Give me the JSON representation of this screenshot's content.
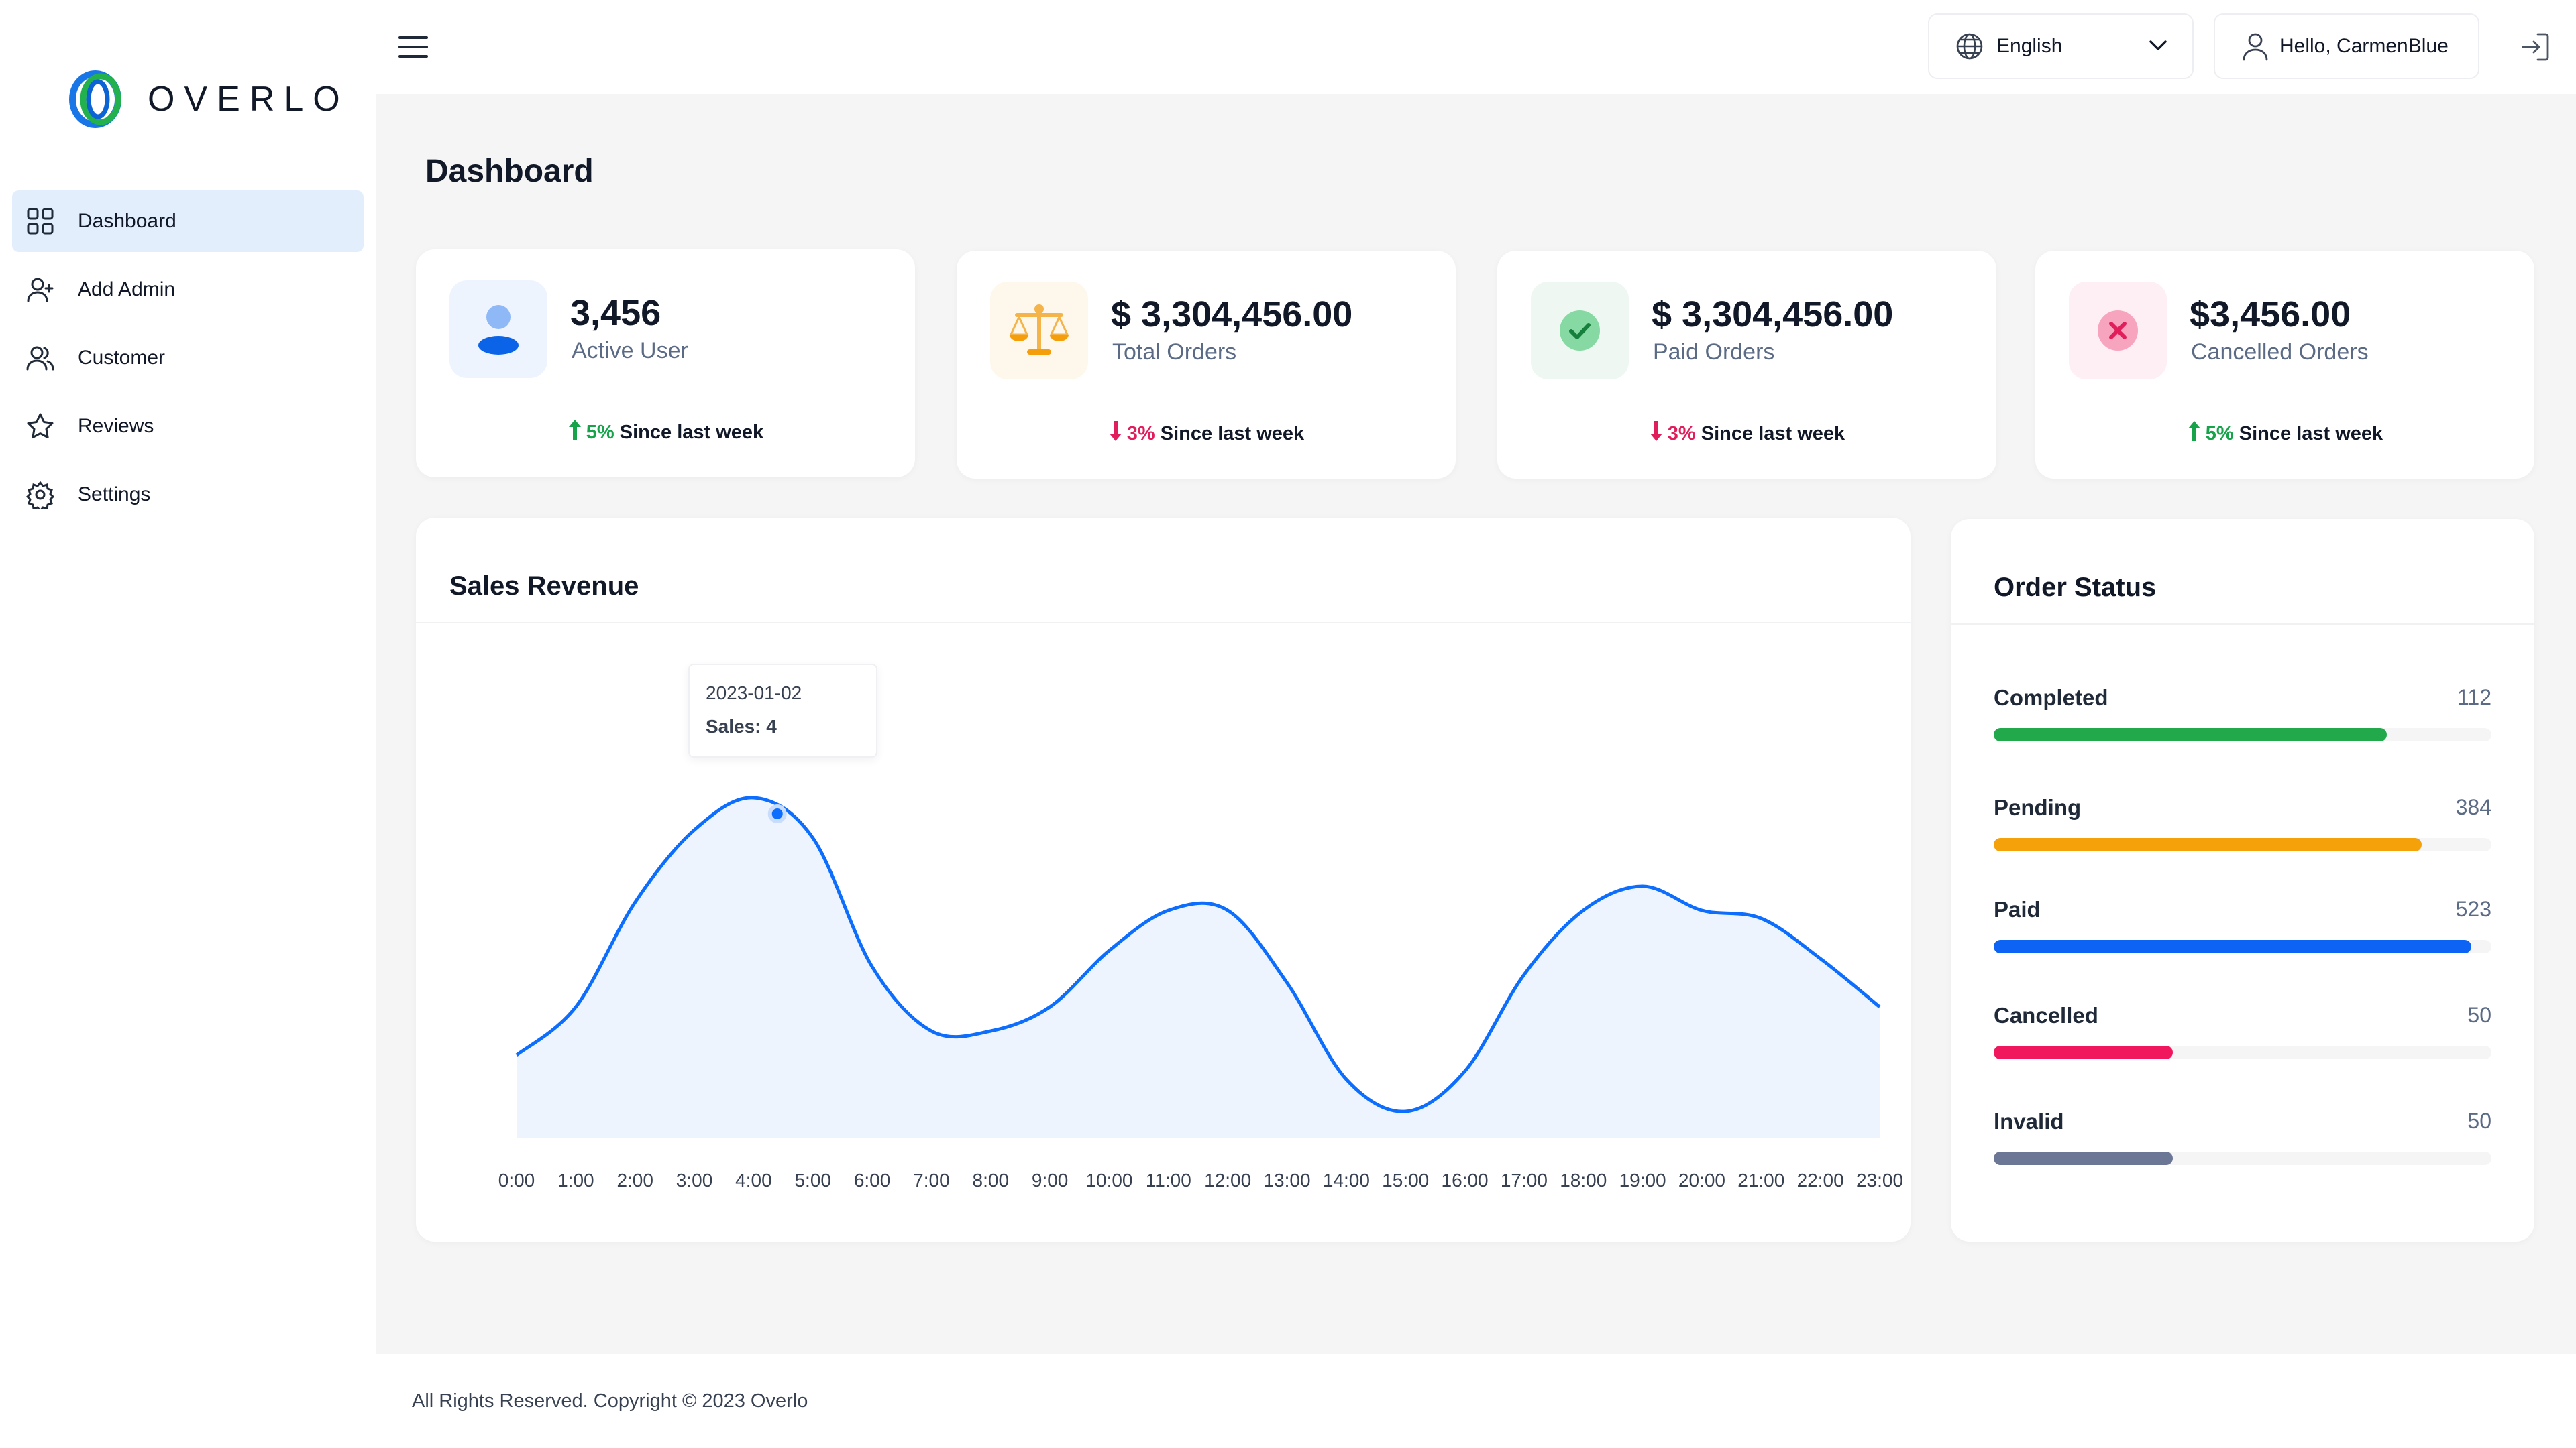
{
  "brand": {
    "name": "OVERLO"
  },
  "sidebar": {
    "items": [
      {
        "label": "Dashboard",
        "icon": "grid-icon",
        "active": true
      },
      {
        "label": "Add Admin",
        "icon": "user-plus-icon"
      },
      {
        "label": "Customer",
        "icon": "users-icon"
      },
      {
        "label": "Reviews",
        "icon": "star-icon"
      },
      {
        "label": "Settings",
        "icon": "gear-icon"
      }
    ]
  },
  "topbar": {
    "language": "English",
    "greeting": "Hello, CarmenBlue"
  },
  "page": {
    "title": "Dashboard"
  },
  "stats": [
    {
      "value": "3,456",
      "label": "Active User",
      "trend_pct": "5%",
      "trend_text": "Since last week",
      "direction": "up",
      "icon": "user-icon",
      "color": "#3b82f6"
    },
    {
      "value": "$ 3,304,456.00",
      "label": "Total Orders",
      "trend_pct": "3%",
      "trend_text": "Since last week",
      "direction": "down",
      "icon": "scale-icon",
      "color": "#f59e0b"
    },
    {
      "value": "$ 3,304,456.00",
      "label": "Paid Orders",
      "trend_pct": "3%",
      "trend_text": "Since last week",
      "direction": "down",
      "icon": "check-icon",
      "color": "#22c55e"
    },
    {
      "value": "$3,456.00",
      "label": "Cancelled Orders",
      "trend_pct": "5%",
      "trend_text": "Since last week",
      "direction": "up",
      "icon": "x-icon",
      "color": "#e11d5c"
    }
  ],
  "sales_revenue": {
    "title": "Sales Revenue",
    "tooltip": {
      "date": "2023-01-02",
      "sales": "Sales: 4"
    }
  },
  "chart_data": {
    "type": "area",
    "title": "Sales Revenue",
    "x": [
      "0:00",
      "1:00",
      "2:00",
      "3:00",
      "4:00",
      "5:00",
      "6:00",
      "7:00",
      "8:00",
      "9:00",
      "10:00",
      "11:00",
      "12:00",
      "13:00",
      "14:00",
      "15:00",
      "16:00",
      "17:00",
      "18:00",
      "19:00",
      "20:00",
      "21:00",
      "22:00",
      "23:00"
    ],
    "series": [
      {
        "values": [
          1.0,
          1.6,
          2.9,
          3.8,
          4.2,
          3.7,
          2.1,
          1.3,
          1.3,
          1.6,
          2.3,
          2.8,
          2.8,
          1.9,
          0.7,
          0.3,
          0.8,
          2.0,
          2.8,
          3.1,
          2.8,
          2.7,
          2.2,
          1.6
        ]
      }
    ],
    "ylim": [
      0,
      5
    ],
    "color": "#0d6efd",
    "grid": false
  },
  "order_status": {
    "title": "Order Status",
    "items": [
      {
        "name": "Completed",
        "count": "112",
        "fraction": 0.79,
        "color": "#22a94b"
      },
      {
        "name": "Pending",
        "count": "384",
        "fraction": 0.86,
        "color": "#f5a20a"
      },
      {
        "name": "Paid",
        "count": "523",
        "fraction": 0.96,
        "color": "#0d63f3"
      },
      {
        "name": "Cancelled",
        "count": "50",
        "fraction": 0.36,
        "color": "#f0175f"
      },
      {
        "name": "Invalid",
        "count": "50",
        "fraction": 0.36,
        "color": "#6b7794"
      }
    ]
  },
  "footer": {
    "text": "All Rights Reserved. Copyright © 2023 Overlo"
  }
}
